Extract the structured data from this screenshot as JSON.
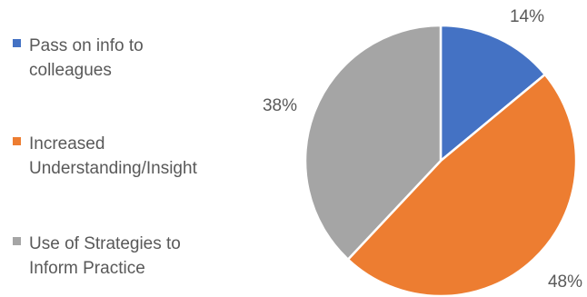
{
  "chart_data": {
    "type": "pie",
    "title": "",
    "legend_position": "left",
    "slices": [
      {
        "label": "Pass on info to\ncolleagues",
        "value": 14,
        "display": "14%",
        "color": "#4472C4"
      },
      {
        "label": "Increased\nUnderstanding/Insight",
        "value": 48,
        "display": "48%",
        "color": "#ED7D31"
      },
      {
        "label": "Use of Strategies to\nInform Practice",
        "value": 38,
        "display": "38%",
        "color": "#A5A5A5"
      }
    ]
  }
}
